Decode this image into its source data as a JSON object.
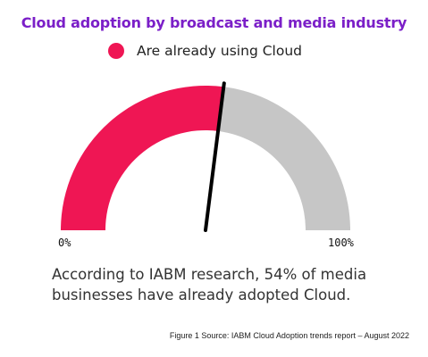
{
  "chart_data": {
    "type": "gauge",
    "title": "Cloud adoption by broadcast and media industry",
    "series": [
      {
        "name": "Are already using Cloud",
        "value": 54
      }
    ],
    "range": [
      0,
      100
    ],
    "min_label": "0%",
    "max_label": "100%"
  },
  "colors": {
    "title": "#7b1fc8",
    "filled": "#ef1654",
    "remaining": "#c6c6c6",
    "needle": "#000000"
  },
  "caption": "According to IABM research, 54% of media businesses have already adopted Cloud.",
  "source": "Figure 1 Source: IABM Cloud Adoption trends report – August 2022"
}
